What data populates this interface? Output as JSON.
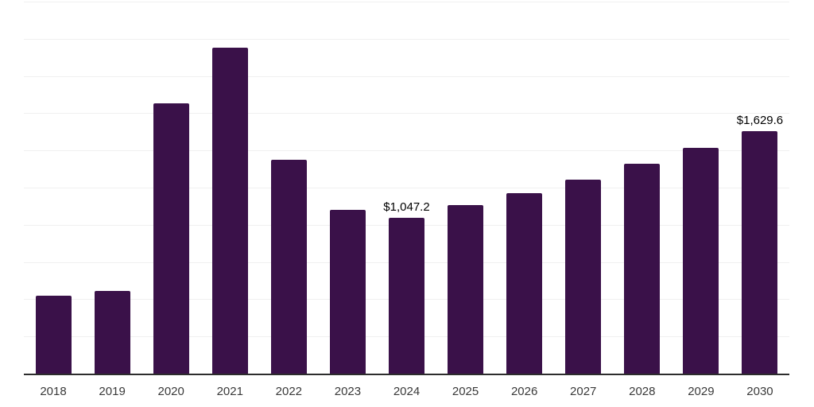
{
  "chart_data": {
    "type": "bar",
    "title": "",
    "xlabel": "",
    "ylabel": "",
    "categories": [
      "2018",
      "2019",
      "2020",
      "2021",
      "2022",
      "2023",
      "2024",
      "2025",
      "2026",
      "2027",
      "2028",
      "2029",
      "2030"
    ],
    "values": [
      523,
      556,
      1816,
      2191,
      1436,
      1101,
      1047.2,
      1130,
      1215,
      1305,
      1408,
      1517,
      1629.6
    ],
    "labeled_points": [
      {
        "category": "2024",
        "value": 1047.2,
        "text": "$1,047.2"
      },
      {
        "category": "2030",
        "value": 1629.6,
        "text": "$1,629.6"
      }
    ],
    "ylim": [
      0,
      2500
    ],
    "gridline_step": 250,
    "grid": true,
    "legend": "none",
    "y_axis_tick_labels_visible": false
  },
  "colors": {
    "background": "#ffffff",
    "bar": "#3a1149",
    "gridline": "#f0f0f0",
    "axis_line": "#2d2d2d",
    "tick_label": "#3a3a3a",
    "data_label": "#000000"
  }
}
